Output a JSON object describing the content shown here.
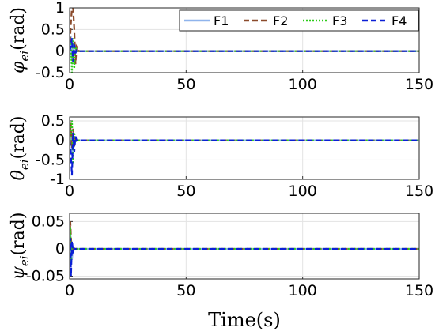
{
  "chart_data": [
    {
      "type": "line",
      "ylabel": "φei(rad)",
      "ylabel_symbol": "φ",
      "ylabel_sub": "ei",
      "ylabel_unit": "(rad)",
      "xlim": [
        0,
        150
      ],
      "ylim": [
        -0.5,
        1
      ],
      "xticks": [
        "0",
        "50",
        "100",
        "150"
      ],
      "yticks": [
        {
          "value": 1,
          "label": "1"
        },
        {
          "value": 0.5,
          "label": "0.5"
        },
        {
          "value": 0,
          "label": "0"
        },
        {
          "value": -0.5,
          "label": "-0.5"
        }
      ],
      "grid": true,
      "legend": {
        "placement": "top-right",
        "entries": [
          "F1",
          "F2",
          "F3",
          "F4"
        ]
      },
      "series": [
        {
          "name": "F1",
          "x": [
            0,
            0.5,
            1.0,
            1.5,
            2.0,
            2.5,
            3.0,
            4.0,
            6.0,
            150
          ],
          "y": [
            0,
            0.35,
            -0.2,
            0.15,
            -0.05,
            0.02,
            0,
            0,
            0,
            0
          ]
        },
        {
          "name": "F2",
          "x": [
            0,
            0.5,
            1.0,
            1.5,
            2.0,
            2.5,
            3.0,
            4.0,
            6.0,
            150
          ],
          "y": [
            0,
            0.6,
            1.0,
            1.0,
            0.5,
            -0.3,
            0.1,
            0,
            0,
            0
          ]
        },
        {
          "name": "F3",
          "x": [
            0,
            0.5,
            1.0,
            1.5,
            2.0,
            2.5,
            3.0,
            4.0,
            6.0,
            150
          ],
          "y": [
            0,
            0.2,
            -0.5,
            0.3,
            -0.4,
            0.1,
            0,
            0,
            0,
            0
          ]
        },
        {
          "name": "F4",
          "x": [
            0,
            0.5,
            1.0,
            1.5,
            2.0,
            2.5,
            3.0,
            4.0,
            6.0,
            150
          ],
          "y": [
            0,
            0.1,
            0.3,
            -0.25,
            0.15,
            -0.05,
            0.02,
            0,
            0,
            0
          ]
        }
      ]
    },
    {
      "type": "line",
      "ylabel": "θei(rad)",
      "ylabel_symbol": "θ",
      "ylabel_sub": "ei",
      "ylabel_unit": "(rad)",
      "xlim": [
        0,
        150
      ],
      "ylim": [
        -1,
        0.6
      ],
      "xticks": [
        "0",
        "50",
        "100",
        "150"
      ],
      "yticks": [
        {
          "value": 0.5,
          "label": "0.5"
        },
        {
          "value": 0,
          "label": "0"
        },
        {
          "value": -0.5,
          "label": "-0.5"
        },
        {
          "value": -1,
          "label": "-1"
        }
      ],
      "grid": true,
      "series": [
        {
          "name": "F1",
          "x": [
            0,
            0.5,
            1.0,
            1.5,
            2.0,
            2.5,
            3.0,
            4.0,
            6.0,
            150
          ],
          "y": [
            0,
            0.3,
            -0.4,
            0.2,
            -0.1,
            0.05,
            0,
            0,
            0,
            0
          ]
        },
        {
          "name": "F2",
          "x": [
            0,
            0.5,
            1.0,
            1.5,
            2.0,
            2.5,
            3.0,
            4.0,
            6.0,
            150
          ],
          "y": [
            0,
            0.45,
            -0.2,
            0.3,
            -0.15,
            0.05,
            0,
            0,
            0,
            0
          ]
        },
        {
          "name": "F3",
          "x": [
            0,
            0.5,
            1.0,
            1.5,
            2.0,
            2.5,
            3.0,
            4.0,
            6.0,
            150
          ],
          "y": [
            0,
            0.2,
            0.5,
            -0.6,
            0.2,
            -0.05,
            0,
            0,
            0,
            0
          ]
        },
        {
          "name": "F4",
          "x": [
            0,
            0.5,
            1.0,
            1.5,
            2.0,
            2.5,
            3.0,
            4.0,
            6.0,
            150
          ],
          "y": [
            0,
            -0.3,
            -0.9,
            0.2,
            -0.3,
            0.1,
            0,
            0,
            0,
            0
          ]
        }
      ]
    },
    {
      "type": "line",
      "ylabel": "ψei(rad)",
      "ylabel_symbol": "ψ",
      "ylabel_sub": "ei",
      "ylabel_unit": "(rad)",
      "xlim": [
        0,
        150
      ],
      "ylim": [
        -0.055,
        0.065
      ],
      "xticks": [
        "0",
        "50",
        "100",
        "150"
      ],
      "yticks": [
        {
          "value": 0.05,
          "label": "0.05"
        },
        {
          "value": 0,
          "label": "0"
        },
        {
          "value": -0.05,
          "label": "-0.05"
        }
      ],
      "grid": true,
      "series": [
        {
          "name": "F1",
          "x": [
            0,
            0.3,
            0.6,
            1.0,
            1.5,
            2.0,
            3.0,
            150
          ],
          "y": [
            0,
            0.03,
            0.01,
            -0.02,
            0.005,
            0,
            0,
            0
          ]
        },
        {
          "name": "F2",
          "x": [
            0,
            0.3,
            0.6,
            1.0,
            1.5,
            2.0,
            3.0,
            150
          ],
          "y": [
            0,
            0.05,
            0.02,
            -0.01,
            0.005,
            0,
            0,
            0
          ]
        },
        {
          "name": "F3",
          "x": [
            0,
            0.3,
            0.6,
            1.0,
            1.5,
            2.0,
            3.0,
            150
          ],
          "y": [
            0,
            0.04,
            -0.03,
            0.01,
            -0.005,
            0,
            0,
            0
          ]
        },
        {
          "name": "F4",
          "x": [
            0,
            0.3,
            0.6,
            1.0,
            1.5,
            2.0,
            3.0,
            150
          ],
          "y": [
            0,
            0.02,
            -0.05,
            0.015,
            -0.005,
            0,
            0,
            0
          ]
        }
      ]
    }
  ],
  "xlabel": "Time(s)",
  "styles": {
    "F1": {
      "color": "#8fb4ec",
      "dash": ""
    },
    "F2": {
      "color": "#8b4a2b",
      "dash": "7,4"
    },
    "F3": {
      "color": "#2ecc1a",
      "dash": "2,2"
    },
    "F4": {
      "color": "#0b1fd6",
      "dash": "7,4"
    }
  }
}
